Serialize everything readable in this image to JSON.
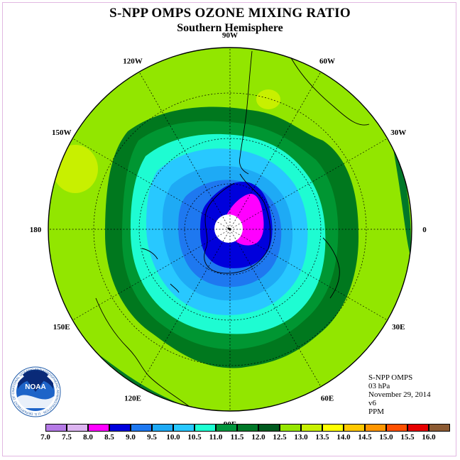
{
  "header": {
    "title": "S-NPP OMPS OZONE MIXING RATIO",
    "subtitle": "Southern Hemisphere"
  },
  "map": {
    "longitude_labels": [
      {
        "text": "90W",
        "angle": 90
      },
      {
        "text": "60W",
        "angle": 60
      },
      {
        "text": "30W",
        "angle": 30
      },
      {
        "text": "0",
        "angle": 0
      },
      {
        "text": "30E",
        "angle": -30
      },
      {
        "text": "60E",
        "angle": -60
      },
      {
        "text": "90E",
        "angle": -90
      },
      {
        "text": "120E",
        "angle": -120
      },
      {
        "text": "150E",
        "angle": -150
      },
      {
        "text": "180",
        "angle": 180
      },
      {
        "text": "150W",
        "angle": 150
      },
      {
        "text": "120W",
        "angle": 120
      }
    ],
    "background_color": "#92e600"
  },
  "info": {
    "line1": "S-NPP OMPS",
    "line2": "03 hPa",
    "line3": "November 29, 2014",
    "line4": "v6",
    "line5": "PPM"
  },
  "colorbar": {
    "labels": [
      "7.0",
      "7.5",
      "8.0",
      "8.5",
      "9.0",
      "9.5",
      "10.0",
      "10.5",
      "11.0",
      "11.5",
      "12.0",
      "12.5",
      "13.0",
      "13.5",
      "14.0",
      "14.5",
      "15.0",
      "15.5",
      "16.0"
    ],
    "colors": [
      "#b57ae6",
      "#dcb4f0",
      "#ff00ff",
      "#0000dc",
      "#1e78f0",
      "#1eaaf5",
      "#28c8ff",
      "#1effd2",
      "#00963c",
      "#007828",
      "#005a1e",
      "#96e600",
      "#c8f000",
      "#ffff00",
      "#ffc800",
      "#ff9600",
      "#ff5000",
      "#e60000",
      "#8c5a32"
    ]
  },
  "logo": {
    "text": "NOAA",
    "ring_text": "NATIONAL OCEANIC AND ATMOSPHERIC ADMINISTRATION · U.S. DEPARTMENT OF COMMERCE"
  }
}
